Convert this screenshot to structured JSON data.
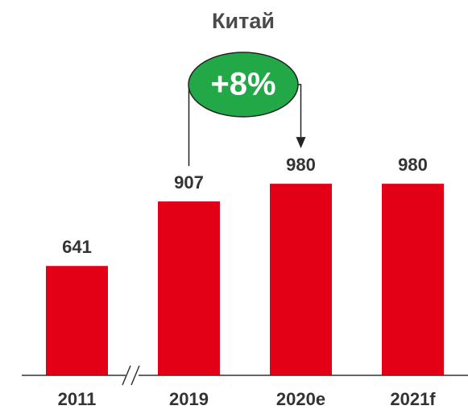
{
  "chart_data": {
    "type": "bar",
    "title": "Китай",
    "categories": [
      "2011",
      "2019",
      "2020e",
      "2021f"
    ],
    "values": [
      641,
      907,
      980,
      980
    ],
    "color": "#e30016",
    "ylim": [
      190,
      1100
    ],
    "annotation": {
      "text": "+8%",
      "color": "#22a846"
    }
  }
}
